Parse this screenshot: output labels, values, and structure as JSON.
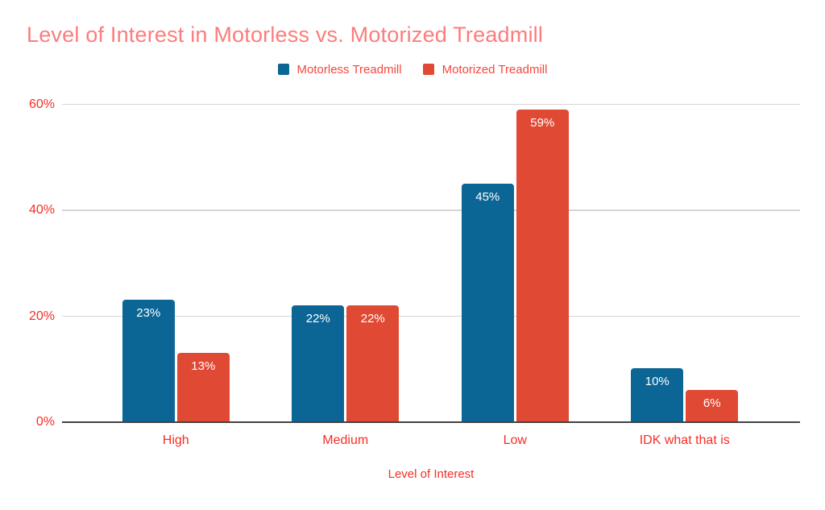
{
  "chart_data": {
    "type": "bar",
    "title": "Level of Interest in Motorless vs. Motorized Treadmill",
    "xlabel": "Level of Interest",
    "ylabel": "",
    "categories": [
      "High",
      "Medium",
      "Low",
      "IDK what that is"
    ],
    "series": [
      {
        "name": "Motorless Treadmill",
        "color": "#0b6695",
        "values": [
          23,
          22,
          45,
          10
        ],
        "labels": [
          "23%",
          "22%",
          "45%",
          "10%"
        ]
      },
      {
        "name": "Motorized Treadmill",
        "color": "#e04a35",
        "values": [
          13,
          22,
          59,
          6
        ],
        "labels": [
          "13%",
          "22%",
          "59%",
          "6%"
        ]
      }
    ],
    "ylim": [
      0,
      60
    ],
    "yticks": [
      {
        "value": 0,
        "label": "0%"
      },
      {
        "value": 20,
        "label": "20%"
      },
      {
        "value": 40,
        "label": "40%"
      },
      {
        "value": 60,
        "label": "60%"
      }
    ],
    "grid": true,
    "legend_position": "top"
  },
  "colors": {
    "title": "#fd7c7c",
    "legend_text": "#f6463e",
    "axis_text": "#f92d25",
    "bar_label": "#ffffff",
    "gridline": "#d6d6d6",
    "baseline": "#424242",
    "background": "#ffffff"
  }
}
